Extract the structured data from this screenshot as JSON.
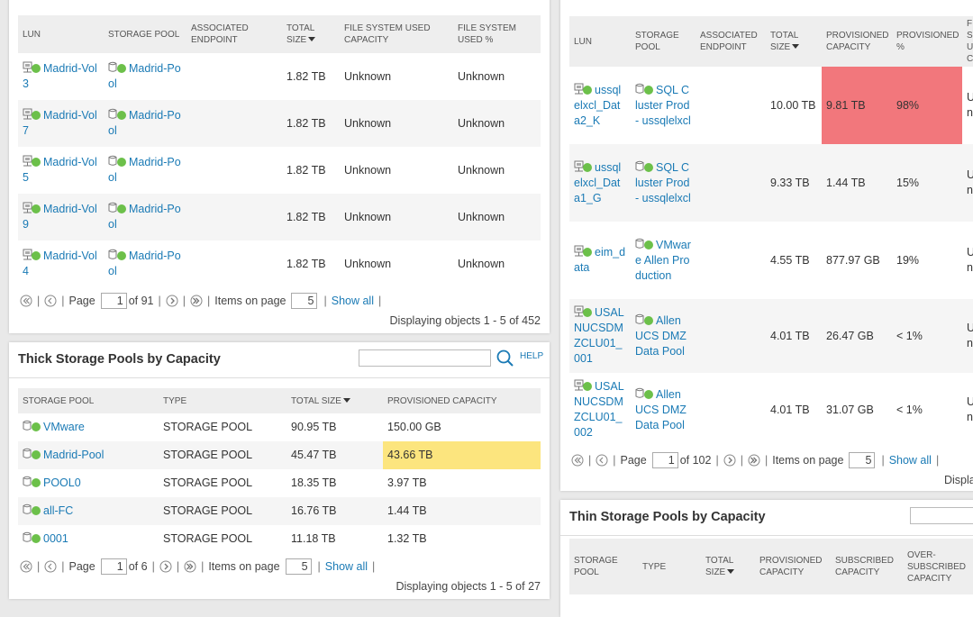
{
  "luns": {
    "table": {
      "columns": [
        {
          "header": "LUN",
          "link": true,
          "icon": "lun"
        },
        {
          "header": "STORAGE POOL",
          "link": true,
          "icon": "pool"
        },
        {
          "header": "ASSOCIATED ENDPOINT"
        },
        {
          "header": "TOTAL SIZE",
          "sort": "desc"
        },
        {
          "header": "FILE SYSTEM USED CAPACITY"
        },
        {
          "header": "FILE SYSTEM USED %"
        }
      ],
      "rows": [
        [
          "Madrid-Vol3",
          "Madrid-Pool",
          null,
          "1.82 TB",
          "Unknown",
          "Unknown"
        ],
        [
          "Madrid-Vol7",
          "Madrid-Pool",
          null,
          "1.82 TB",
          "Unknown",
          "Unknown"
        ],
        [
          "Madrid-Vol5",
          "Madrid-Pool",
          null,
          "1.82 TB",
          "Unknown",
          "Unknown"
        ],
        [
          "Madrid-Vol9",
          "Madrid-Pool",
          null,
          "1.82 TB",
          "Unknown",
          "Unknown"
        ],
        [
          "Madrid-Vol4",
          "Madrid-Pool",
          null,
          "1.82 TB",
          "Unknown",
          "Unknown"
        ]
      ]
    },
    "pager": {
      "label": "Page",
      "page": 1,
      "of": "of 91",
      "items_label": "Items on page",
      "per_page": 5,
      "show_all": "Show all"
    },
    "footer": "Displaying objects 1 - 5 of 452"
  },
  "thick_pools": {
    "title": "Thick Storage Pools by Capacity",
    "help": "HELP",
    "table": {
      "columns": [
        {
          "header": "STORAGE POOL",
          "link": true,
          "icon": "pool"
        },
        {
          "header": "TYPE"
        },
        {
          "header": "TOTAL SIZE",
          "sort": "desc"
        },
        {
          "header": "PROVISIONED CAPACITY"
        }
      ],
      "rows": [
        [
          "VMware",
          "STORAGE POOL",
          "90.95 TB",
          "150.00 GB"
        ],
        [
          "Madrid-Pool",
          "STORAGE POOL",
          "45.47 TB",
          {
            "text": "43.66 TB",
            "color": "#fce57e"
          }
        ],
        [
          "POOL0",
          "STORAGE POOL",
          "18.35 TB",
          "3.97 TB"
        ],
        [
          "all-FC",
          "STORAGE POOL",
          "16.76 TB",
          "1.44 TB"
        ],
        [
          "0001",
          "STORAGE POOL",
          "11.18 TB",
          "1.32 TB"
        ]
      ]
    },
    "pager": {
      "label": "Page",
      "page": 1,
      "of": "of 6",
      "items_label": "Items on page",
      "per_page": 5,
      "show_all": "Show all"
    },
    "footer": "Displaying objects 1 - 5 of 27"
  },
  "provisioned_luns": {
    "table": {
      "columns": [
        {
          "header": "LUN",
          "link": true,
          "icon": "lun"
        },
        {
          "header": "STORAGE POOL",
          "link": true,
          "icon": "pool"
        },
        {
          "header": "ASSOCIATED ENDPOINT"
        },
        {
          "header": "TOTAL SIZE",
          "sort": "desc"
        },
        {
          "header": "PROVISIONED CAPACITY"
        },
        {
          "header": "PROVISIONED %"
        },
        {
          "header": "FILE SYSTEM USED CAPACITY"
        }
      ],
      "rows": [
        [
          "ussqlelxcl_Data2_K",
          "SQL Cluster Prod - ussqlelxcl",
          null,
          "10.00 TB",
          {
            "text": "9.81 TB",
            "color": "#f2777c"
          },
          {
            "text": "98%",
            "color": "#f2777c"
          },
          "Unknown"
        ],
        [
          "ussqlelxcl_Data1_G",
          "SQL Cluster Prod - ussqlelxcl",
          null,
          "9.33 TB",
          "1.44 TB",
          "15%",
          "Unknown"
        ],
        [
          "eim_data",
          "VMware Allen Production",
          null,
          "4.55 TB",
          "877.97 GB",
          "19%",
          "Unknown"
        ],
        [
          "USALNUCSDMZCLU01_001",
          "Allen UCS DMZ Data Pool",
          null,
          "4.01 TB",
          "26.47 GB",
          "< 1%",
          "Unknown"
        ],
        [
          "USALNUCSDMZCLU01_002",
          "Allen UCS DMZ Data Pool",
          null,
          "4.01 TB",
          "31.07 GB",
          "< 1%",
          "Unknown"
        ]
      ]
    },
    "pager": {
      "label": "Page",
      "page": 1,
      "of": "of 102",
      "items_label": "Items on page",
      "per_page": 5,
      "show_all": "Show all"
    },
    "footer": "Displaying objects"
  },
  "thin_pools": {
    "title": "Thin Storage Pools by Capacity",
    "table": {
      "columns": [
        {
          "header": "STORAGE POOL",
          "link": true,
          "icon": "pool"
        },
        {
          "header": "TYPE"
        },
        {
          "header": "TOTAL SIZE",
          "sort": "desc"
        },
        {
          "header": "PROVISIONED CAPACITY"
        },
        {
          "header": "SUBSCRIBED CAPACITY"
        },
        {
          "header": "OVER-SUBSCRIBED CAPACITY"
        }
      ],
      "rows": []
    }
  }
}
